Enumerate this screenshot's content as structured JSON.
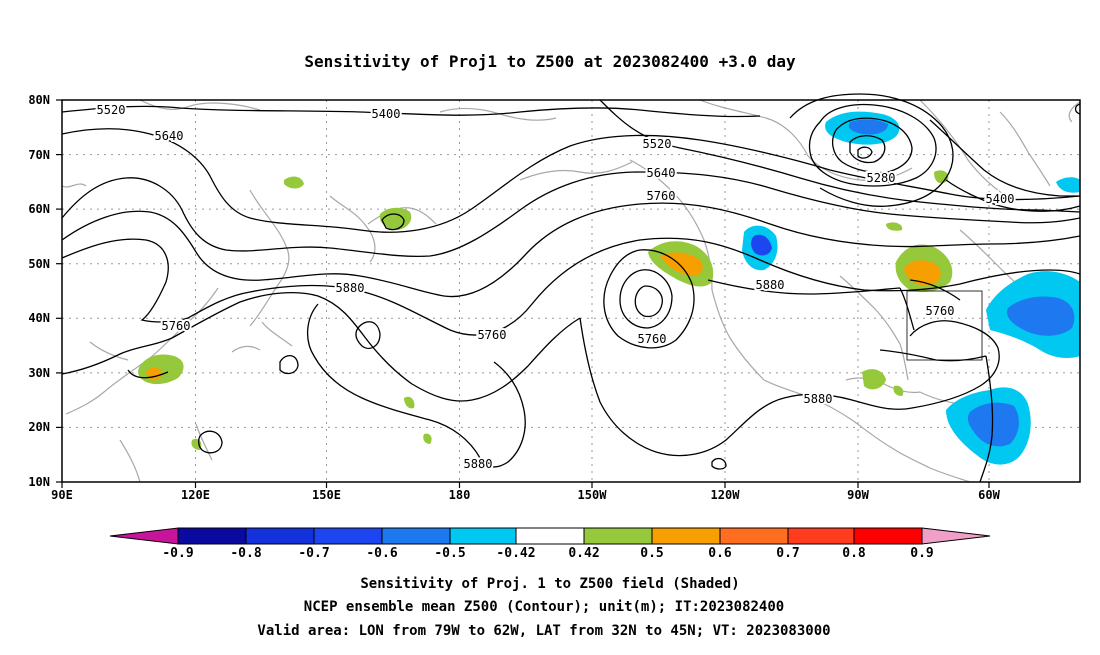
{
  "title": "Sensitivity of Proj1 to Z500 at 2023082400 +3.0 day",
  "map": {
    "lat_labels": [
      "80N",
      "70N",
      "60N",
      "50N",
      "40N",
      "30N",
      "20N",
      "10N"
    ],
    "lon_labels": [
      "90E",
      "120E",
      "150E",
      "180",
      "150W",
      "120W",
      "90W",
      "60W"
    ],
    "contour_labels": {
      "c5520a": "5520",
      "c5400a": "5400",
      "c5640a": "5640",
      "c5520b": "5520",
      "c5640b": "5640",
      "c5760a": "5760",
      "c5280": "5280",
      "c5400b": "5400",
      "c5880a": "5880",
      "c5760b": "5760",
      "c5760c": "5760",
      "c5880b": "5880",
      "c5760d": "5760",
      "c5880c": "5880",
      "c5880d": "5880"
    },
    "valid_area": {
      "lon": [
        "79W",
        "62W"
      ],
      "lat": [
        "32N",
        "45N"
      ]
    }
  },
  "colorbar": {
    "ticks": [
      "-0.9",
      "-0.8",
      "-0.7",
      "-0.6",
      "-0.5",
      "-0.42",
      "0.42",
      "0.5",
      "0.6",
      "0.7",
      "0.8",
      "0.9"
    ],
    "colors": {
      "lt_m09": "#c8149b",
      "m09_m08": "#0a0aa0",
      "m08_m07": "#1432dc",
      "m07_m06": "#1e46f0",
      "m06_m05": "#1e78f0",
      "m05_m042": "#00c8f0",
      "m042_042": "#ffffff",
      "p042_05": "#96c83c",
      "p05_06": "#f5a000",
      "p06_07": "#ff6e1e",
      "p07_08": "#ff3c1e",
      "p08_09": "#ff0000",
      "gt_09": "#f0a0c8"
    }
  },
  "caption": {
    "line1": "Sensitivity of Proj. 1 to Z500 field (Shaded)",
    "line2": "NCEP ensemble mean Z500 (Contour); unit(m); IT:2023082400",
    "line3": "Valid area: LON from 79W to 62W, LAT from 32N to 45N; VT: 2023083000"
  }
}
